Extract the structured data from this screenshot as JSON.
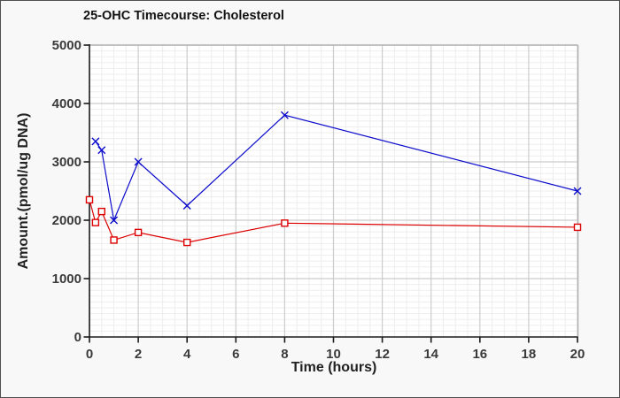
{
  "colors": {
    "window_background": "#f8f8f8",
    "plot_background": "#ffffff",
    "grid_minor": "#ededed",
    "grid_major": "#cccccc",
    "plot_border": "#b2b2b2",
    "axis": "#1a1a1a",
    "tick_text": "#3a3a3a"
  },
  "chart_data": {
    "type": "line",
    "title": "25-OHC Timecourse: Cholesterol",
    "xlabel": "Time (hours)",
    "ylabel": "Amount.(pmol/ug DNA)",
    "xlim": [
      0,
      20
    ],
    "ylim": [
      0,
      5000
    ],
    "x_ticks": [
      0,
      2,
      4,
      6,
      8,
      10,
      12,
      14,
      16,
      18,
      20
    ],
    "y_ticks": [
      0,
      1000,
      2000,
      3000,
      4000,
      5000
    ],
    "x_minor_step": 0.5,
    "y_minor_step": 100,
    "grid": true,
    "legend_position": "none",
    "series": [
      {
        "name": "blue-x-series",
        "color": "#0b0bcc",
        "marker": "x",
        "x": [
          0.25,
          0.5,
          1,
          2,
          4,
          8,
          20
        ],
        "values": [
          3350,
          3200,
          2000,
          3000,
          2250,
          3800,
          2500
        ]
      },
      {
        "name": "red-square-series",
        "color": "#dd0000",
        "marker": "square",
        "x": [
          0,
          0.25,
          0.5,
          1,
          2,
          4,
          8,
          20
        ],
        "values": [
          2350,
          1960,
          2150,
          1660,
          1790,
          1620,
          1950,
          1880
        ]
      }
    ]
  }
}
